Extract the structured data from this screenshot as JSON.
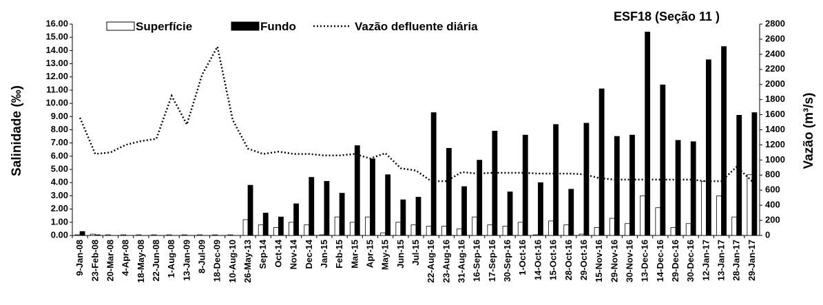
{
  "chart_data": {
    "type": "bar-line",
    "title": "ESF18 (Seção 11 )",
    "y_label": "Salinidade (‰)",
    "y2_label": "Vazão (m³/s)",
    "categories": [
      "9-Jan-08",
      "23-Feb-08",
      "20-Mar-08",
      "4-Apr-08",
      "18-May-08",
      "22-Jun-08",
      "1-Aug-08",
      "13-Jan-09",
      "8-Jul-09",
      "18-Dec-09",
      "10-Aug-10",
      "26-May-13",
      "Sep-14",
      "Oct-14",
      "Nov-14",
      "Dec-14",
      "Jan-15",
      "Feb-15",
      "Mar-15",
      "Apr-15",
      "May-15",
      "Jun-15",
      "Jul-15",
      "22-Aug-16",
      "23-Aug-16",
      "31-Aug-16",
      "16-Sep-16",
      "17-Sep-16",
      "30-Sep-16",
      "1-Oct-16",
      "14-Oct-16",
      "15-Oct-16",
      "28-Oct-16",
      "29-Oct-16",
      "15-Nov-16",
      "29-Nov-16",
      "30-Nov-16",
      "13-Dec-16",
      "14-Dec-16",
      "29-Dec-16",
      "30-Dec-16",
      "12-Jan-17",
      "13-Jan-17",
      "28-Jan-17",
      "29-Jan-17"
    ],
    "series": [
      {
        "name": "Superfície",
        "kind": "bar",
        "color": "#ffffff",
        "values": [
          0.05,
          0.1,
          0.05,
          0.05,
          0.05,
          0.05,
          0.05,
          0.05,
          0.05,
          0.05,
          0.05,
          1.2,
          0.8,
          0.6,
          1.0,
          0.8,
          0.05,
          1.4,
          1.0,
          1.4,
          0.2,
          1.0,
          0.8,
          0.7,
          0.7,
          0.5,
          1.4,
          0.8,
          0.7,
          1.0,
          0.05,
          1.1,
          0.8,
          0.1,
          0.6,
          1.3,
          0.9,
          3.0,
          2.1,
          0.6,
          0.9,
          4.1,
          3.0,
          1.4,
          4.6
        ]
      },
      {
        "name": "Fundo",
        "kind": "bar",
        "color": "#000000",
        "values": [
          0.3,
          0.05,
          0,
          0,
          0,
          0,
          0,
          0,
          0,
          0,
          0,
          3.8,
          1.7,
          1.4,
          2.4,
          4.4,
          4.1,
          3.2,
          6.8,
          5.8,
          4.6,
          2.7,
          2.9,
          9.3,
          6.6,
          3.7,
          5.7,
          7.9,
          3.3,
          7.6,
          4.0,
          8.4,
          3.5,
          8.5,
          11.1,
          7.5,
          7.6,
          15.4,
          11.4,
          7.2,
          7.1,
          13.3,
          14.3,
          9.1,
          9.3
        ]
      },
      {
        "name": "Vazão defluente diária",
        "kind": "line",
        "axis": "y2",
        "color": "#000000",
        "values": [
          1560,
          1080,
          1100,
          1200,
          1250,
          1280,
          1850,
          1470,
          2130,
          2500,
          1530,
          1150,
          1080,
          1110,
          1080,
          1080,
          1060,
          1060,
          1080,
          1020,
          1090,
          890,
          860,
          720,
          720,
          840,
          820,
          830,
          830,
          830,
          820,
          820,
          820,
          810,
          760,
          740,
          740,
          740,
          740,
          740,
          740,
          720,
          720,
          910,
          720
        ]
      }
    ],
    "ylim": [
      0,
      16
    ],
    "yticks": [
      {
        "value": 0,
        "label": "0.00"
      },
      {
        "value": 1,
        "label": "1.00"
      },
      {
        "value": 2,
        "label": "2.00"
      },
      {
        "value": 3,
        "label": "3.00"
      },
      {
        "value": 4,
        "label": "4.00"
      },
      {
        "value": 5,
        "label": "5.00"
      },
      {
        "value": 6,
        "label": "6.00"
      },
      {
        "value": 7,
        "label": "7.00"
      },
      {
        "value": 8,
        "label": "8.00"
      },
      {
        "value": 9,
        "label": "9.00"
      },
      {
        "value": 10,
        "label": "10.00"
      },
      {
        "value": 11,
        "label": "11.00"
      },
      {
        "value": 12,
        "label": "12.00"
      },
      {
        "value": 13,
        "label": "13.00"
      },
      {
        "value": 14,
        "label": "14.00"
      },
      {
        "value": 15,
        "label": "15.00"
      },
      {
        "value": 16,
        "label": "16.00"
      }
    ],
    "y2lim": [
      0,
      2800
    ],
    "y2ticks": [
      0,
      200,
      400,
      600,
      800,
      1000,
      1200,
      1400,
      1600,
      1800,
      2000,
      2200,
      2400,
      2600,
      2800
    ]
  }
}
